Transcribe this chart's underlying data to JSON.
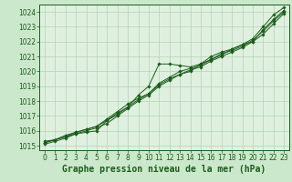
{
  "title": "Graphe pression niveau de la mer (hPa)",
  "xlabel_hours": [
    0,
    1,
    2,
    3,
    4,
    5,
    6,
    7,
    8,
    9,
    10,
    11,
    12,
    13,
    14,
    15,
    16,
    17,
    18,
    19,
    20,
    21,
    22,
    23
  ],
  "series": [
    [
      1015.3,
      1015.4,
      1015.6,
      1015.8,
      1015.9,
      1016.0,
      1016.7,
      1017.2,
      1017.6,
      1018.4,
      1019.0,
      1020.5,
      1020.5,
      1020.4,
      1020.3,
      1020.5,
      1020.8,
      1021.1,
      1021.5,
      1021.8,
      1022.2,
      1023.0,
      1023.8,
      1024.3
    ],
    [
      1015.2,
      1015.4,
      1015.7,
      1015.9,
      1016.1,
      1016.3,
      1016.8,
      1017.3,
      1017.8,
      1018.2,
      1018.5,
      1019.1,
      1019.5,
      1019.8,
      1020.0,
      1020.5,
      1021.0,
      1021.3,
      1021.5,
      1021.8,
      1022.0,
      1022.8,
      1023.5,
      1024.1
    ],
    [
      1015.1,
      1015.3,
      1015.5,
      1015.8,
      1016.0,
      1016.2,
      1016.5,
      1017.0,
      1017.5,
      1018.0,
      1018.4,
      1019.0,
      1019.4,
      1019.8,
      1020.1,
      1020.3,
      1020.7,
      1021.0,
      1021.3,
      1021.6,
      1022.0,
      1022.5,
      1023.2,
      1023.9
    ],
    [
      1015.2,
      1015.4,
      1015.6,
      1015.9,
      1016.1,
      1016.3,
      1016.7,
      1017.1,
      1017.6,
      1018.1,
      1018.5,
      1019.2,
      1019.6,
      1020.0,
      1020.2,
      1020.4,
      1020.8,
      1021.2,
      1021.4,
      1021.7,
      1022.1,
      1022.7,
      1023.4,
      1024.0
    ]
  ],
  "line_color": "#1a5c1a",
  "marker_color": "#1a5c1a",
  "bg_color": "#cce8cc",
  "grid_color": "#b0d4b0",
  "plot_bg": "#e0f0e0",
  "ylim_min": 1015,
  "ylim_max": 1024.5,
  "yticks": [
    1015,
    1016,
    1017,
    1018,
    1019,
    1020,
    1021,
    1022,
    1023,
    1024
  ],
  "title_fontsize": 7,
  "tick_fontsize": 5.5
}
